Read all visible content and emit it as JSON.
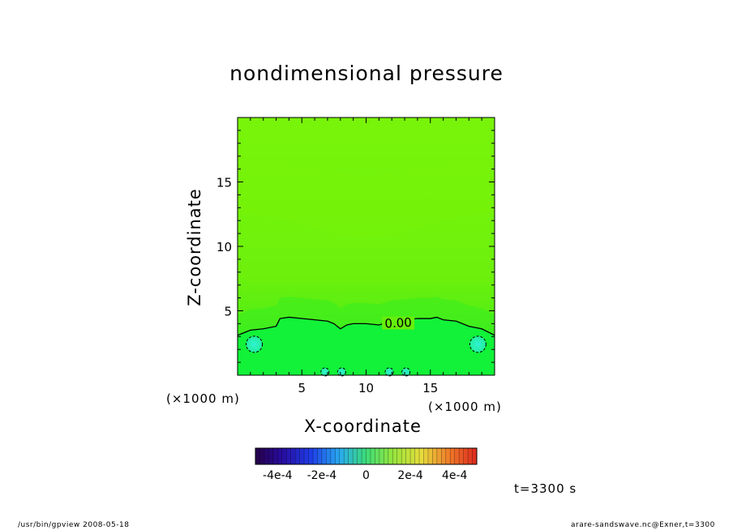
{
  "chart_data": {
    "type": "heatmap",
    "title": "nondimensional pressure",
    "xlabel": "X-coordinate",
    "ylabel": "Z-coordinate",
    "x_unit": "(×1000 m)",
    "y_unit": "(×1000 m)",
    "xlim": [
      0,
      20
    ],
    "ylim": [
      0,
      20
    ],
    "x_ticks": [
      5,
      10,
      15
    ],
    "y_ticks": [
      5,
      10,
      15
    ],
    "contour_label": "0.00",
    "zero_contour": {
      "x": [
        0,
        1,
        2,
        3,
        3.3,
        4,
        5,
        6,
        7,
        7.5,
        8,
        8.5,
        9,
        10,
        11,
        12,
        13,
        14,
        15,
        15.5,
        16,
        17,
        18,
        19,
        20
      ],
      "z": [
        3.1,
        3.5,
        3.6,
        3.8,
        4.4,
        4.5,
        4.4,
        4.3,
        4.2,
        4.0,
        3.6,
        3.9,
        4.0,
        4.0,
        3.9,
        4.2,
        4.3,
        4.4,
        4.4,
        4.5,
        4.3,
        4.2,
        3.8,
        3.6,
        3.1
      ]
    },
    "negative_cells": [
      {
        "x": 1.3,
        "z": 2.4
      },
      {
        "x": 18.7,
        "z": 2.4
      },
      {
        "x": 6.8,
        "z": 0.3
      },
      {
        "x": 8.1,
        "z": 0.3
      },
      {
        "x": 11.8,
        "z": 0.3
      },
      {
        "x": 13.1,
        "z": 0.3
      }
    ],
    "colorbar": {
      "range": [
        -0.0005,
        0.0005
      ],
      "tick_labels": [
        "-4e-4",
        "-2e-4",
        "0",
        "2e-4",
        "4e-4"
      ]
    },
    "colors": {
      "upper": "#77f20a",
      "middle": "#66ef0c",
      "lower": "#11f238",
      "band": "#33ee22",
      "negative": "#29f0c6"
    }
  },
  "time_label": "t=3300 s",
  "footer": {
    "left": "/usr/bin/gpview   2008-05-18",
    "right": "arare-sandswave.nc@Exner,t=3300"
  }
}
